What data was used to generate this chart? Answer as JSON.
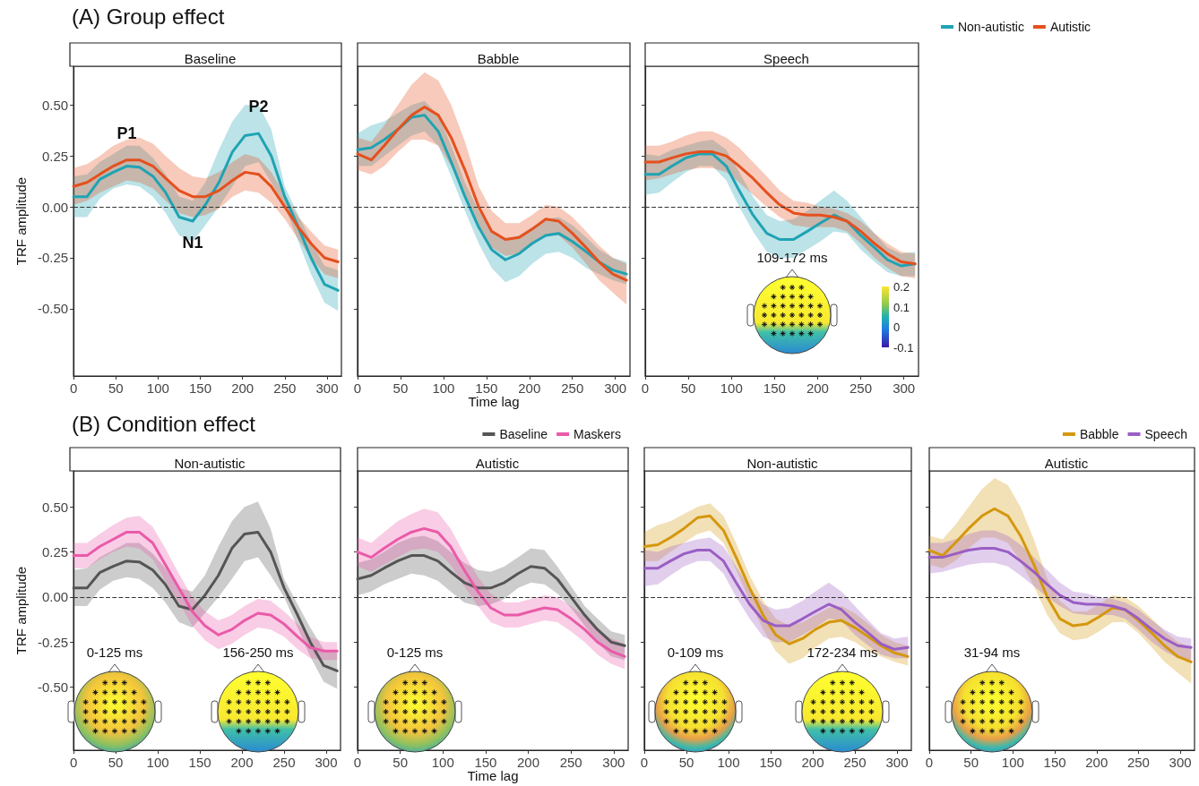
{
  "chart_data": [
    {
      "type": "line",
      "subtitle": "(A) Group effect",
      "title": "Baseline",
      "ylabel": "TRF amplitude",
      "x": [
        0,
        16,
        31,
        47,
        63,
        78,
        94,
        109,
        125,
        141,
        156,
        172,
        188,
        203,
        219,
        234,
        250,
        266,
        281,
        297,
        313
      ],
      "xlim": [
        0,
        317
      ],
      "xticks": [
        0,
        50,
        100,
        150,
        200,
        250,
        300
      ],
      "ylim": [
        -0.83,
        0.69
      ],
      "yticks": [
        {
          "value": -0.5,
          "label": "-0.50"
        },
        {
          "value": -0.25,
          "label": "-0.25"
        },
        {
          "value": 0,
          "label": "0.00"
        },
        {
          "value": 0.25,
          "label": "0.25"
        },
        {
          "value": 0.5,
          "label": "0.50"
        }
      ],
      "series": [
        {
          "color": "#1fa3b3",
          "values": [
            0.05,
            0.05,
            0.135,
            0.17,
            0.2,
            0.195,
            0.15,
            0.07,
            -0.05,
            -0.07,
            0.01,
            0.12,
            0.27,
            0.35,
            0.36,
            0.25,
            0.05,
            -0.1,
            -0.25,
            -0.38,
            -0.41
          ],
          "upper": [
            0.15,
            0.16,
            0.22,
            0.26,
            0.3,
            0.3,
            0.24,
            0.16,
            0.05,
            0.03,
            0.12,
            0.28,
            0.42,
            0.5,
            0.5,
            0.38,
            0.1,
            -0.04,
            -0.17,
            -0.29,
            -0.31
          ],
          "lower": [
            -0.05,
            -0.05,
            0.04,
            0.09,
            0.11,
            0.1,
            0.05,
            -0.03,
            -0.14,
            -0.17,
            -0.09,
            0.0,
            0.1,
            0.2,
            0.22,
            0.12,
            0.0,
            -0.17,
            -0.33,
            -0.47,
            -0.51
          ]
        },
        {
          "color": "#e4501e",
          "values": [
            0.1,
            0.12,
            0.16,
            0.2,
            0.23,
            0.23,
            0.2,
            0.14,
            0.08,
            0.05,
            0.05,
            0.08,
            0.13,
            0.17,
            0.16,
            0.1,
            0.0,
            -0.1,
            -0.18,
            -0.25,
            -0.27
          ],
          "upper": [
            0.19,
            0.21,
            0.25,
            0.3,
            0.33,
            0.34,
            0.31,
            0.25,
            0.19,
            0.15,
            0.14,
            0.17,
            0.22,
            0.26,
            0.24,
            0.17,
            0.06,
            -0.05,
            -0.12,
            -0.19,
            -0.21
          ],
          "lower": [
            0.01,
            0.03,
            0.07,
            0.1,
            0.13,
            0.12,
            0.09,
            0.03,
            -0.03,
            -0.05,
            -0.04,
            -0.01,
            0.05,
            0.08,
            0.07,
            0.02,
            -0.06,
            -0.16,
            -0.25,
            -0.33,
            -0.35
          ]
        }
      ],
      "ref_lines": [
        {
          "axis": "y",
          "value": 0,
          "color": "#333333",
          "line_style": "dashed"
        }
      ],
      "annotations": [
        {
          "text": "P1",
          "x": 63,
          "y": 0.23
        },
        {
          "text": "N1",
          "x": 141,
          "y": -0.07
        },
        {
          "text": "P2",
          "x": 219,
          "y": 0.36
        }
      ],
      "tick_labels": true
    },
    {
      "type": "line",
      "title": "Babble",
      "xlabel": "Time lag",
      "x": [
        0,
        16,
        31,
        47,
        63,
        78,
        94,
        109,
        125,
        141,
        156,
        172,
        188,
        203,
        219,
        234,
        250,
        266,
        281,
        297,
        313
      ],
      "xlim": [
        0,
        317
      ],
      "xticks": [
        0,
        50,
        100,
        150,
        200,
        250,
        300
      ],
      "ylim": [
        -0.83,
        0.69
      ],
      "yticks": [
        -0.5,
        -0.25,
        0,
        0.25,
        0.5
      ],
      "tick_labels": "x",
      "series": [
        {
          "color": "#1fa3b3",
          "values": [
            0.28,
            0.29,
            0.33,
            0.38,
            0.44,
            0.45,
            0.37,
            0.22,
            0.05,
            -0.1,
            -0.21,
            -0.26,
            -0.23,
            -0.18,
            -0.14,
            -0.13,
            -0.17,
            -0.22,
            -0.27,
            -0.31,
            -0.33
          ],
          "upper": [
            0.36,
            0.4,
            0.42,
            0.46,
            0.5,
            0.52,
            0.45,
            0.3,
            0.12,
            -0.02,
            -0.12,
            -0.16,
            -0.14,
            -0.1,
            -0.06,
            -0.05,
            -0.09,
            -0.15,
            -0.21,
            -0.25,
            -0.27
          ],
          "lower": [
            0.2,
            0.2,
            0.25,
            0.3,
            0.35,
            0.37,
            0.3,
            0.15,
            -0.02,
            -0.18,
            -0.3,
            -0.37,
            -0.34,
            -0.28,
            -0.23,
            -0.22,
            -0.25,
            -0.3,
            -0.33,
            -0.36,
            -0.38
          ]
        },
        {
          "color": "#e4501e",
          "values": [
            0.26,
            0.23,
            0.3,
            0.38,
            0.45,
            0.49,
            0.45,
            0.34,
            0.18,
            0.0,
            -0.12,
            -0.16,
            -0.15,
            -0.11,
            -0.06,
            -0.07,
            -0.13,
            -0.2,
            -0.27,
            -0.33,
            -0.36
          ],
          "upper": [
            0.34,
            0.32,
            0.4,
            0.5,
            0.6,
            0.66,
            0.62,
            0.5,
            0.32,
            0.1,
            -0.02,
            -0.08,
            -0.08,
            -0.04,
            0.01,
            0.0,
            -0.05,
            -0.12,
            -0.19,
            -0.25,
            -0.28
          ],
          "lower": [
            0.18,
            0.16,
            0.2,
            0.27,
            0.33,
            0.33,
            0.3,
            0.2,
            0.06,
            -0.1,
            -0.2,
            -0.24,
            -0.23,
            -0.19,
            -0.14,
            -0.14,
            -0.2,
            -0.28,
            -0.36,
            -0.42,
            -0.48
          ]
        }
      ],
      "ref_lines": [
        {
          "axis": "y",
          "value": 0,
          "color": "#333333",
          "line_style": "dashed"
        }
      ]
    },
    {
      "type": "line",
      "title": "Speech",
      "legend": "top right",
      "x": [
        0,
        16,
        31,
        47,
        63,
        78,
        94,
        109,
        125,
        141,
        156,
        172,
        188,
        203,
        219,
        234,
        250,
        266,
        281,
        297,
        313
      ],
      "xlim": [
        0,
        317
      ],
      "xticks": [
        0,
        50,
        100,
        150,
        200,
        250,
        300
      ],
      "ylim": [
        -0.83,
        0.69
      ],
      "yticks": [
        -0.5,
        -0.25,
        0,
        0.25,
        0.5
      ],
      "tick_labels": "x",
      "series": [
        {
          "name": "Non-autistic",
          "color": "#1fa3b3",
          "values": [
            0.16,
            0.16,
            0.2,
            0.24,
            0.26,
            0.26,
            0.2,
            0.08,
            -0.04,
            -0.13,
            -0.16,
            -0.16,
            -0.12,
            -0.08,
            -0.04,
            -0.07,
            -0.14,
            -0.2,
            -0.26,
            -0.29,
            -0.28
          ],
          "upper": [
            0.26,
            0.25,
            0.28,
            0.3,
            0.32,
            0.33,
            0.28,
            0.17,
            0.05,
            -0.04,
            -0.07,
            -0.06,
            -0.02,
            0.03,
            0.08,
            0.03,
            -0.05,
            -0.13,
            -0.2,
            -0.23,
            -0.22
          ],
          "lower": [
            0.06,
            0.07,
            0.12,
            0.17,
            0.2,
            0.2,
            0.13,
            0.0,
            -0.12,
            -0.22,
            -0.25,
            -0.25,
            -0.21,
            -0.17,
            -0.12,
            -0.13,
            -0.21,
            -0.27,
            -0.32,
            -0.34,
            -0.34
          ]
        },
        {
          "name": "Autistic",
          "color": "#e4501e",
          "values": [
            0.22,
            0.22,
            0.24,
            0.26,
            0.27,
            0.27,
            0.25,
            0.2,
            0.14,
            0.07,
            0.01,
            -0.03,
            -0.04,
            -0.04,
            -0.05,
            -0.07,
            -0.12,
            -0.18,
            -0.23,
            -0.27,
            -0.28
          ],
          "upper": [
            0.3,
            0.3,
            0.32,
            0.35,
            0.37,
            0.37,
            0.34,
            0.29,
            0.22,
            0.15,
            0.08,
            0.03,
            0.02,
            0.0,
            -0.01,
            -0.03,
            -0.07,
            -0.13,
            -0.18,
            -0.22,
            -0.23
          ],
          "lower": [
            0.13,
            0.14,
            0.16,
            0.18,
            0.19,
            0.19,
            0.17,
            0.12,
            0.06,
            0.0,
            -0.05,
            -0.09,
            -0.1,
            -0.1,
            -0.1,
            -0.12,
            -0.18,
            -0.25,
            -0.3,
            -0.34,
            -0.35
          ]
        }
      ],
      "ref_lines": [
        {
          "axis": "y",
          "value": 0,
          "color": "#333333",
          "line_style": "dashed"
        }
      ],
      "annotations": [
        "109-172 ms",
        "0.2",
        "0.1",
        "0",
        "-0.1"
      ]
    },
    {
      "type": "line",
      "subtitle": "(B) Condition effect",
      "title": "Non-autistic",
      "ylabel": "TRF amplitude",
      "x": [
        0,
        16,
        31,
        47,
        63,
        78,
        94,
        109,
        125,
        141,
        156,
        172,
        188,
        203,
        219,
        234,
        250,
        266,
        281,
        297,
        313
      ],
      "xlim": [
        0,
        317
      ],
      "xticks": [
        0,
        50,
        100,
        150,
        200,
        250,
        300
      ],
      "ylim": [
        -0.85,
        0.7
      ],
      "yticks": [
        {
          "value": -0.5,
          "label": "-0.50"
        },
        {
          "value": -0.25,
          "label": "-0.25"
        },
        {
          "value": 0,
          "label": "0.00"
        },
        {
          "value": 0.25,
          "label": "0.25"
        },
        {
          "value": 0.5,
          "label": "0.50"
        }
      ],
      "tick_labels": true,
      "series": [
        {
          "color": "#555555",
          "values": [
            0.05,
            0.05,
            0.135,
            0.17,
            0.2,
            0.195,
            0.15,
            0.07,
            -0.05,
            -0.07,
            0.01,
            0.12,
            0.27,
            0.35,
            0.36,
            0.25,
            0.05,
            -0.1,
            -0.25,
            -0.38,
            -0.41
          ],
          "upper": [
            0.15,
            0.16,
            0.22,
            0.26,
            0.3,
            0.3,
            0.24,
            0.16,
            0.05,
            0.03,
            0.12,
            0.28,
            0.42,
            0.5,
            0.53,
            0.38,
            0.1,
            -0.04,
            -0.17,
            -0.29,
            -0.31
          ],
          "lower": [
            -0.05,
            -0.05,
            0.04,
            0.09,
            0.11,
            0.1,
            0.05,
            -0.03,
            -0.14,
            -0.17,
            -0.09,
            0.0,
            0.1,
            0.2,
            0.22,
            0.12,
            0.0,
            -0.17,
            -0.33,
            -0.47,
            -0.51
          ]
        },
        {
          "color": "#ea5aa9",
          "values": [
            0.23,
            0.23,
            0.28,
            0.32,
            0.36,
            0.36,
            0.3,
            0.18,
            0.05,
            -0.08,
            -0.16,
            -0.21,
            -0.18,
            -0.13,
            -0.09,
            -0.1,
            -0.15,
            -0.22,
            -0.28,
            -0.3,
            -0.3
          ],
          "upper": [
            0.3,
            0.3,
            0.35,
            0.4,
            0.44,
            0.45,
            0.39,
            0.27,
            0.13,
            0.0,
            -0.08,
            -0.13,
            -0.1,
            -0.05,
            -0.01,
            -0.02,
            -0.08,
            -0.15,
            -0.22,
            -0.25,
            -0.25
          ],
          "lower": [
            0.16,
            0.16,
            0.21,
            0.25,
            0.28,
            0.27,
            0.21,
            0.09,
            -0.03,
            -0.16,
            -0.24,
            -0.29,
            -0.26,
            -0.21,
            -0.17,
            -0.18,
            -0.22,
            -0.29,
            -0.34,
            -0.35,
            -0.35
          ]
        }
      ],
      "ref_lines": [
        {
          "axis": "y",
          "value": 0,
          "color": "#333333",
          "line_style": "dashed"
        }
      ],
      "annotations": [
        "0-125 ms",
        "156-250 ms"
      ]
    },
    {
      "type": "line",
      "title": "Autistic",
      "xlabel": "Time lag",
      "legend": "top right",
      "x": [
        0,
        16,
        31,
        47,
        63,
        78,
        94,
        109,
        125,
        141,
        156,
        172,
        188,
        203,
        219,
        234,
        250,
        266,
        281,
        297,
        313
      ],
      "xlim": [
        0,
        317
      ],
      "xticks": [
        0,
        50,
        100,
        150,
        200,
        250,
        300
      ],
      "ylim": [
        -0.85,
        0.7
      ],
      "yticks": [
        -0.5,
        -0.25,
        0,
        0.25,
        0.5
      ],
      "tick_labels": "x",
      "series": [
        {
          "name": "Baseline",
          "color": "#555555",
          "values": [
            0.1,
            0.12,
            0.16,
            0.2,
            0.23,
            0.23,
            0.2,
            0.14,
            0.08,
            0.05,
            0.05,
            0.08,
            0.13,
            0.17,
            0.16,
            0.1,
            0.0,
            -0.1,
            -0.18,
            -0.25,
            -0.27
          ],
          "upper": [
            0.19,
            0.21,
            0.25,
            0.3,
            0.33,
            0.34,
            0.31,
            0.25,
            0.19,
            0.15,
            0.14,
            0.17,
            0.22,
            0.27,
            0.26,
            0.17,
            0.06,
            -0.05,
            -0.12,
            -0.19,
            -0.21
          ],
          "lower": [
            0.01,
            0.03,
            0.07,
            0.1,
            0.13,
            0.12,
            0.09,
            0.03,
            -0.03,
            -0.05,
            -0.04,
            -0.01,
            0.05,
            0.08,
            0.07,
            0.02,
            -0.06,
            -0.16,
            -0.25,
            -0.33,
            -0.35
          ]
        },
        {
          "name": "Maskers",
          "color": "#ea5aa9",
          "values": [
            0.25,
            0.22,
            0.27,
            0.32,
            0.36,
            0.38,
            0.36,
            0.28,
            0.15,
            0.03,
            -0.06,
            -0.1,
            -0.1,
            -0.08,
            -0.06,
            -0.07,
            -0.12,
            -0.18,
            -0.25,
            -0.3,
            -0.33
          ],
          "upper": [
            0.33,
            0.3,
            0.36,
            0.42,
            0.46,
            0.49,
            0.47,
            0.38,
            0.24,
            0.11,
            0.02,
            -0.03,
            -0.03,
            -0.01,
            0.01,
            0.0,
            -0.05,
            -0.11,
            -0.18,
            -0.23,
            -0.26
          ],
          "lower": [
            0.17,
            0.14,
            0.18,
            0.22,
            0.26,
            0.27,
            0.25,
            0.18,
            0.06,
            -0.05,
            -0.14,
            -0.17,
            -0.17,
            -0.15,
            -0.13,
            -0.14,
            -0.19,
            -0.25,
            -0.32,
            -0.37,
            -0.4
          ]
        }
      ],
      "ref_lines": [
        {
          "axis": "y",
          "value": 0,
          "color": "#333333",
          "line_style": "dashed"
        }
      ],
      "annotations": [
        "0-125 ms"
      ]
    },
    {
      "type": "line",
      "title": "Non-autistic",
      "x": [
        0,
        16,
        31,
        47,
        63,
        78,
        94,
        109,
        125,
        141,
        156,
        172,
        188,
        203,
        219,
        234,
        250,
        266,
        281,
        297,
        313
      ],
      "xlim": [
        0,
        317
      ],
      "xticks": [
        0,
        50,
        100,
        150,
        200,
        250,
        300
      ],
      "ylim": [
        -0.85,
        0.7
      ],
      "yticks": [
        -0.5,
        -0.25,
        0,
        0.25,
        0.5
      ],
      "tick_labels": "x",
      "series": [
        {
          "color": "#d4970e",
          "values": [
            0.28,
            0.29,
            0.33,
            0.38,
            0.44,
            0.45,
            0.37,
            0.22,
            0.05,
            -0.1,
            -0.21,
            -0.26,
            -0.23,
            -0.18,
            -0.14,
            -0.13,
            -0.17,
            -0.22,
            -0.27,
            -0.31,
            -0.33
          ],
          "upper": [
            0.36,
            0.4,
            0.42,
            0.46,
            0.5,
            0.52,
            0.45,
            0.3,
            0.12,
            -0.02,
            -0.12,
            -0.16,
            -0.14,
            -0.1,
            -0.06,
            -0.05,
            -0.09,
            -0.15,
            -0.21,
            -0.25,
            -0.27
          ],
          "lower": [
            0.2,
            0.2,
            0.25,
            0.3,
            0.35,
            0.37,
            0.3,
            0.15,
            -0.02,
            -0.18,
            -0.3,
            -0.37,
            -0.34,
            -0.28,
            -0.23,
            -0.22,
            -0.25,
            -0.3,
            -0.33,
            -0.36,
            -0.38
          ]
        },
        {
          "color": "#9a5ec4",
          "values": [
            0.16,
            0.16,
            0.2,
            0.24,
            0.26,
            0.26,
            0.2,
            0.08,
            -0.04,
            -0.13,
            -0.16,
            -0.16,
            -0.12,
            -0.08,
            -0.04,
            -0.07,
            -0.14,
            -0.2,
            -0.26,
            -0.29,
            -0.28
          ],
          "upper": [
            0.26,
            0.25,
            0.28,
            0.3,
            0.32,
            0.33,
            0.28,
            0.17,
            0.05,
            -0.04,
            -0.07,
            -0.06,
            -0.02,
            0.03,
            0.08,
            0.03,
            -0.05,
            -0.13,
            -0.2,
            -0.23,
            -0.22
          ],
          "lower": [
            0.06,
            0.07,
            0.12,
            0.17,
            0.2,
            0.2,
            0.13,
            0.0,
            -0.12,
            -0.22,
            -0.25,
            -0.25,
            -0.21,
            -0.17,
            -0.12,
            -0.13,
            -0.21,
            -0.27,
            -0.32,
            -0.34,
            -0.34
          ]
        }
      ],
      "ref_lines": [
        {
          "axis": "y",
          "value": 0,
          "color": "#333333",
          "line_style": "dashed"
        }
      ],
      "annotations": [
        "0-109 ms",
        "172-234 ms"
      ]
    },
    {
      "type": "line",
      "title": "Autistic",
      "legend": "top right",
      "x": [
        0,
        16,
        31,
        47,
        63,
        78,
        94,
        109,
        125,
        141,
        156,
        172,
        188,
        203,
        219,
        234,
        250,
        266,
        281,
        297,
        313
      ],
      "xlim": [
        0,
        317
      ],
      "xticks": [
        0,
        50,
        100,
        150,
        200,
        250,
        300
      ],
      "ylim": [
        -0.85,
        0.7
      ],
      "yticks": [
        -0.5,
        -0.25,
        0,
        0.25,
        0.5
      ],
      "tick_labels": "x",
      "series": [
        {
          "name": "Babble",
          "color": "#d4970e",
          "values": [
            0.26,
            0.23,
            0.3,
            0.38,
            0.45,
            0.49,
            0.45,
            0.34,
            0.18,
            0.0,
            -0.12,
            -0.16,
            -0.15,
            -0.11,
            -0.06,
            -0.07,
            -0.13,
            -0.2,
            -0.27,
            -0.33,
            -0.36
          ],
          "upper": [
            0.34,
            0.32,
            0.4,
            0.5,
            0.6,
            0.66,
            0.62,
            0.5,
            0.32,
            0.1,
            -0.02,
            -0.08,
            -0.08,
            -0.04,
            0.01,
            0.0,
            -0.05,
            -0.12,
            -0.19,
            -0.25,
            -0.28
          ],
          "lower": [
            0.18,
            0.16,
            0.2,
            0.27,
            0.33,
            0.33,
            0.3,
            0.2,
            0.06,
            -0.1,
            -0.2,
            -0.24,
            -0.23,
            -0.19,
            -0.14,
            -0.14,
            -0.2,
            -0.28,
            -0.36,
            -0.42,
            -0.48
          ]
        },
        {
          "name": "Speech",
          "color": "#9a5ec4",
          "values": [
            0.22,
            0.22,
            0.24,
            0.26,
            0.27,
            0.27,
            0.25,
            0.2,
            0.14,
            0.07,
            0.01,
            -0.03,
            -0.04,
            -0.04,
            -0.05,
            -0.07,
            -0.12,
            -0.18,
            -0.23,
            -0.27,
            -0.28
          ],
          "upper": [
            0.3,
            0.3,
            0.32,
            0.35,
            0.37,
            0.37,
            0.34,
            0.29,
            0.22,
            0.15,
            0.08,
            0.03,
            0.02,
            0.0,
            -0.01,
            -0.03,
            -0.07,
            -0.13,
            -0.18,
            -0.22,
            -0.23
          ],
          "lower": [
            0.13,
            0.14,
            0.16,
            0.18,
            0.19,
            0.19,
            0.17,
            0.12,
            0.06,
            0.0,
            -0.05,
            -0.09,
            -0.1,
            -0.1,
            -0.1,
            -0.12,
            -0.18,
            -0.25,
            -0.3,
            -0.34,
            -0.35
          ]
        }
      ],
      "ref_lines": [
        {
          "axis": "y",
          "value": 0,
          "color": "#333333",
          "line_style": "dashed"
        }
      ],
      "annotations": [
        "31-94 ms"
      ]
    }
  ]
}
